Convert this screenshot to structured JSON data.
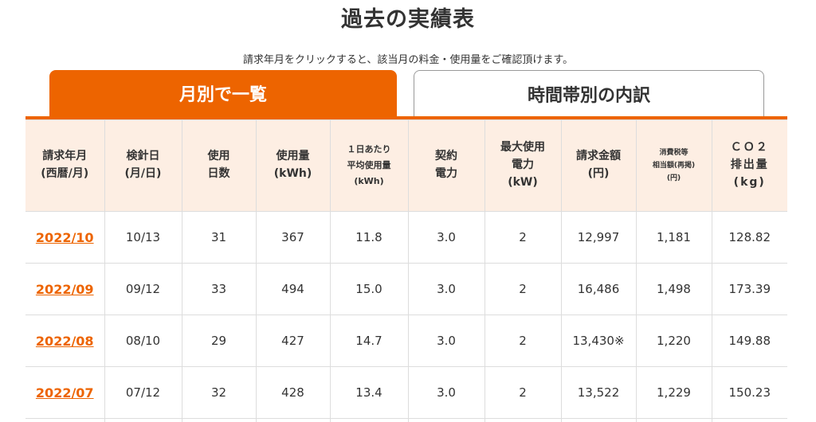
{
  "page": {
    "title": "過去の実績表",
    "instruction": "請求年月をクリックすると、該当月の料金・使用量をご確認頂けます。"
  },
  "tabs": [
    {
      "label": "月別で一覧",
      "active": true
    },
    {
      "label": "時間帯別の内訳",
      "active": false
    }
  ],
  "colors": {
    "accent": "#ed6400",
    "header_bg": "#fdeee3",
    "border": "#dddddd"
  },
  "table": {
    "headers": [
      [
        "請求年月",
        "(西暦/月)"
      ],
      [
        "検針日",
        "(月/日)"
      ],
      [
        "使用",
        "日数"
      ],
      [
        "使用量",
        "(kWh)"
      ],
      [
        "１日あたり",
        "平均使用量",
        "(kWh)"
      ],
      [
        "契約",
        "電力"
      ],
      [
        "最大使用",
        "電力",
        "(kW)"
      ],
      [
        "請求金額",
        "(円)"
      ],
      [
        "消費税等",
        "相当額(再掲)",
        "(円)"
      ],
      [
        "ＣＯ２",
        "排出量",
        "(kg)"
      ]
    ],
    "rows": [
      [
        "2022/10",
        "10/13",
        "31",
        "367",
        "11.8",
        "3.0",
        "2",
        "12,997",
        "1,181",
        "128.82"
      ],
      [
        "2022/09",
        "09/12",
        "33",
        "494",
        "15.0",
        "3.0",
        "2",
        "16,486",
        "1,498",
        "173.39"
      ],
      [
        "2022/08",
        "08/10",
        "29",
        "427",
        "14.7",
        "3.0",
        "2",
        "13,430※",
        "1,220",
        "149.88"
      ],
      [
        "2022/07",
        "07/12",
        "32",
        "428",
        "13.4",
        "3.0",
        "2",
        "13,522",
        "1,229",
        "150.23"
      ]
    ]
  }
}
